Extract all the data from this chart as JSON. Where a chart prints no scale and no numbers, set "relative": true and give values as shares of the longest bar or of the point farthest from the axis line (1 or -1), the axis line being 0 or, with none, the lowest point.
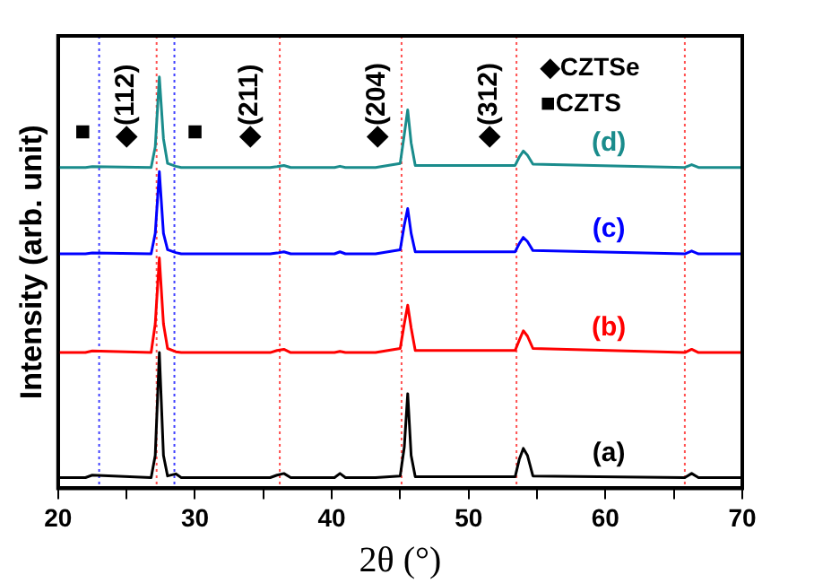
{
  "chart_data": {
    "type": "line",
    "relative": true,
    "xlabel": "2θ (°)",
    "ylabel": "Intensity (arb. unit)",
    "x": [
      20,
      22,
      22.5,
      26.8,
      27.1,
      27.4,
      27.7,
      28.0,
      28.6,
      29,
      35.5,
      36.0,
      36.5,
      37,
      40.2,
      40.6,
      41,
      43.2,
      45.0,
      45.3,
      45.55,
      45.8,
      46.1,
      53.4,
      53.7,
      54.0,
      54.3,
      54.7,
      65.8,
      66.3,
      66.8,
      70
    ],
    "xlim": [
      20,
      70
    ],
    "xticks": [
      20,
      {
        "value": 25,
        "label": null
      },
      30,
      {
        "value": 35,
        "label": null
      },
      40,
      {
        "value": 45,
        "label": null
      },
      50,
      {
        "value": 55,
        "label": null
      },
      60,
      {
        "value": 65,
        "label": null
      },
      70
    ],
    "series": [
      {
        "name": "(a)",
        "color": "#000000",
        "values": [
          0.026,
          0.026,
          0.032,
          0.026,
          0.08,
          0.33,
          0.08,
          0.03,
          0.035,
          0.026,
          0.026,
          0.032,
          0.036,
          0.026,
          0.026,
          0.036,
          0.026,
          0.026,
          0.03,
          0.1,
          0.23,
          0.08,
          0.028,
          0.028,
          0.07,
          0.097,
          0.08,
          0.03,
          0.026,
          0.036,
          0.026,
          0.026
        ]
      },
      {
        "name": "(b)",
        "color": "#ff0000",
        "values": [
          0.33,
          0.33,
          0.334,
          0.33,
          0.4,
          0.56,
          0.4,
          0.34,
          0.332,
          0.33,
          0.33,
          0.335,
          0.338,
          0.33,
          0.33,
          0.333,
          0.33,
          0.33,
          0.34,
          0.4,
          0.445,
          0.39,
          0.335,
          0.335,
          0.36,
          0.383,
          0.37,
          0.34,
          0.33,
          0.338,
          0.33,
          0.33
        ]
      },
      {
        "name": "(c)",
        "color": "#0000ff",
        "values": [
          0.57,
          0.57,
          0.572,
          0.57,
          0.62,
          0.77,
          0.62,
          0.58,
          0.573,
          0.57,
          0.57,
          0.572,
          0.575,
          0.57,
          0.57,
          0.575,
          0.57,
          0.57,
          0.58,
          0.64,
          0.68,
          0.62,
          0.575,
          0.575,
          0.595,
          0.61,
          0.6,
          0.578,
          0.57,
          0.577,
          0.57,
          0.57
        ]
      },
      {
        "name": "(d)",
        "color": "#1a8c8c",
        "values": [
          0.78,
          0.78,
          0.782,
          0.78,
          0.83,
          1,
          0.85,
          0.79,
          0.783,
          0.78,
          0.78,
          0.782,
          0.785,
          0.78,
          0.78,
          0.783,
          0.78,
          0.78,
          0.79,
          0.86,
          0.92,
          0.84,
          0.785,
          0.785,
          0.805,
          0.82,
          0.81,
          0.788,
          0.78,
          0.787,
          0.78,
          0.78
        ]
      }
    ],
    "ref_lines": [
      {
        "axis": "x",
        "value": 23.0,
        "color": "#4040ff",
        "line_style": "dotted"
      },
      {
        "axis": "x",
        "value": 28.5,
        "color": "#4040ff",
        "line_style": "dotted"
      },
      {
        "axis": "x",
        "value": 27.2,
        "color": "#ff5050",
        "line_style": "dotted"
      },
      {
        "axis": "x",
        "value": 36.2,
        "color": "#ff5050",
        "line_style": "dotted"
      },
      {
        "axis": "x",
        "value": 45.1,
        "color": "#ff5050",
        "line_style": "dotted"
      },
      {
        "axis": "x",
        "value": 53.5,
        "color": "#ff5050",
        "line_style": "dotted"
      },
      {
        "axis": "x",
        "value": 65.8,
        "color": "#ff5050",
        "line_style": "dotted"
      }
    ],
    "annotations": [
      "■",
      "◆(112)",
      "■",
      "◆(211)",
      "◆(204)",
      "◆(312)",
      "◆CZTSe",
      "■CZTS"
    ],
    "legend": false,
    "grid": false,
    "marker": "none",
    "line_style": "solid"
  }
}
